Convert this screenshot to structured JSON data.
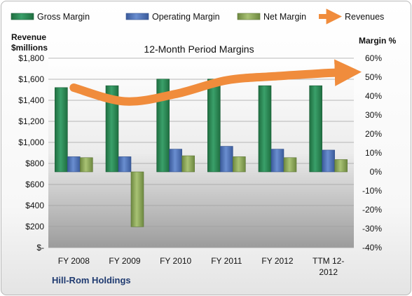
{
  "chart_data": {
    "type": "bar",
    "title": "12-Month Period Margins",
    "company": "Hill-Rom Holdings",
    "categories": [
      "FY 2008",
      "FY 2009",
      "FY 2010",
      "FY 2011",
      "FY 2012",
      "TTM 12-2012"
    ],
    "category_lines": [
      [
        "FY 2008"
      ],
      [
        "FY 2009"
      ],
      [
        "FY 2010"
      ],
      [
        "FY 2011"
      ],
      [
        "FY 2012"
      ],
      [
        "TTM 12-",
        "2012"
      ]
    ],
    "left_axis": {
      "label_lines": [
        "Revenue",
        "$millions"
      ],
      "ylim": [
        0,
        1800
      ],
      "ticks": [
        0,
        200,
        400,
        600,
        800,
        1000,
        1200,
        1400,
        1600,
        1800
      ],
      "tick_labels": [
        "$-",
        "$200",
        "$400",
        "$600",
        "$800",
        "$1,000",
        "$1,200",
        "$1,400",
        "$1,600",
        "$1,800"
      ]
    },
    "right_axis": {
      "label": "Margin %",
      "ylim": [
        -40,
        60
      ],
      "ticks": [
        -40,
        -30,
        -20,
        -10,
        0,
        10,
        20,
        30,
        40,
        50,
        60
      ],
      "tick_labels": [
        "-40%",
        "-30%",
        "-20%",
        "-10%",
        "0%",
        "10%",
        "20%",
        "30%",
        "40%",
        "50%",
        "60%"
      ]
    },
    "series": [
      {
        "name": "Gross Margin",
        "kind": "bar",
        "axis": "right",
        "color": "#2e8b57",
        "values": [
          44.5,
          45.5,
          49,
          49,
          45.5,
          45.5
        ]
      },
      {
        "name": "Operating Margin",
        "kind": "bar",
        "axis": "right",
        "color": "#4f72b8",
        "values": [
          8,
          8,
          12,
          13.5,
          12,
          11.5
        ]
      },
      {
        "name": "Net Margin",
        "kind": "bar",
        "axis": "right",
        "color": "#8fa85a",
        "values": [
          7.5,
          -29,
          8.5,
          8,
          7.5,
          6.5
        ]
      },
      {
        "name": "Revenues",
        "kind": "line",
        "axis": "left",
        "color": "#f08c3c",
        "values": [
          1520,
          1390,
          1460,
          1590,
          1630,
          1660
        ]
      }
    ],
    "legend_position": "top",
    "grid": true
  }
}
